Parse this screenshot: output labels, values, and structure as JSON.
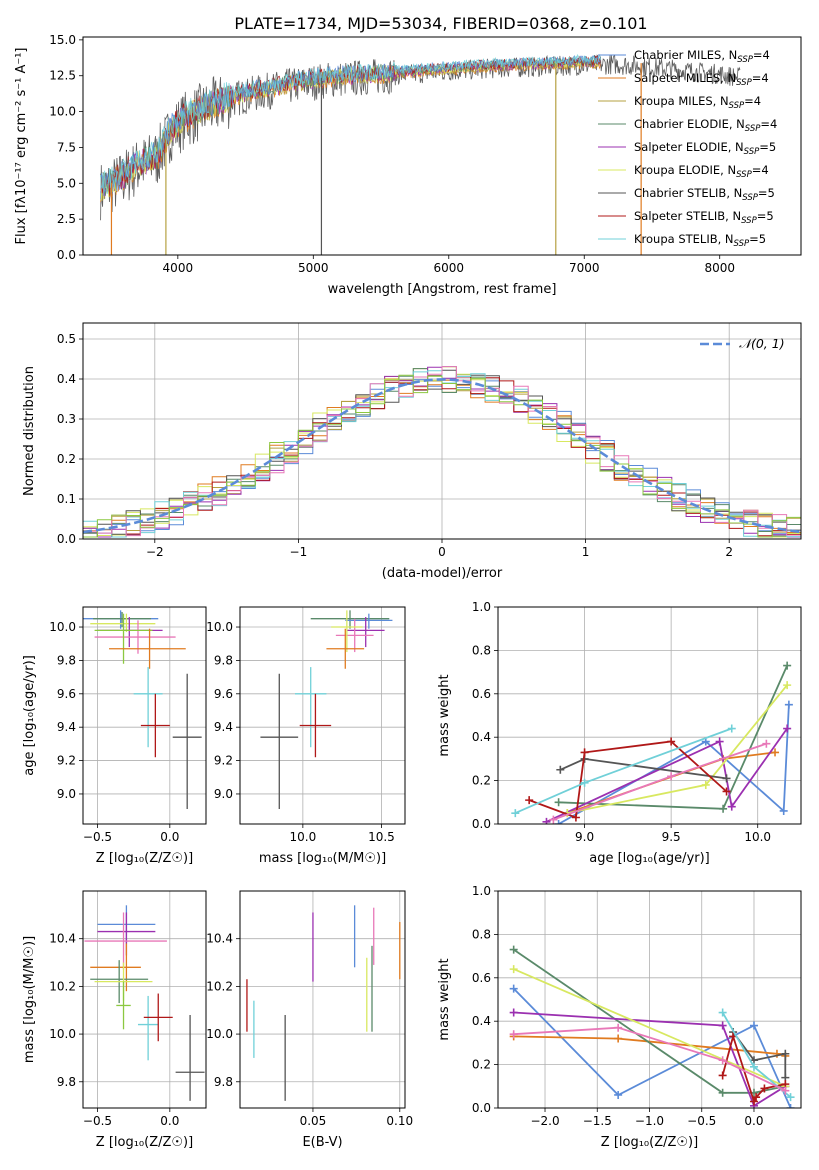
{
  "figure": {
    "title": "PLATE=1734, MJD=53034, FIBERID=0368, z=0.101"
  },
  "colors": {
    "models": [
      "#5b8bd8",
      "#e07b20",
      "#b5a040",
      "#5a8a6a",
      "#9b30b0",
      "#d8e860",
      "#555555",
      "#b01818",
      "#70d0d8"
    ],
    "extra": [
      "#e878b8",
      "#8cc840"
    ]
  },
  "chart_data": [
    {
      "id": "spectrum",
      "type": "line",
      "xlabel": "wavelength [Angstrom, rest frame]",
      "ylabel": "Flux [fλ10⁻¹⁷ erg cm⁻² s⁻¹ A⁻¹]",
      "xlim": [
        3300,
        8600
      ],
      "ylim": [
        0,
        15.2
      ],
      "xticks": [
        4000,
        5000,
        6000,
        7000,
        8000
      ],
      "yticks": [
        0.0,
        2.5,
        5.0,
        7.5,
        10.0,
        12.5,
        15.0
      ],
      "ytick_labels": [
        "0.0",
        "2.5",
        "5.0",
        "7.5",
        "10.0",
        "12.5",
        "15.0"
      ],
      "grid": false,
      "legend_position": "upper right",
      "legend": [
        "Chabrier MILES, N_SSP=4",
        "Salpeter MILES, N_SSP=4",
        "Kroupa MILES, N_SSP=4",
        "Chabrier ELODIE, N_SSP=4",
        "Salpeter ELODIE, N_SSP=5",
        "Kroupa ELODIE, N_SSP=4",
        "Chabrier STELIB, N_SSP=5",
        "Salpeter STELIB, N_SSP=5",
        "Kroupa STELIB, N_SSP=5"
      ],
      "continuum": {
        "x": [
          3430,
          3550,
          3700,
          3850,
          3950,
          4050,
          4200,
          4350,
          4500,
          4700,
          4900,
          5100,
          5400,
          5700,
          6000,
          6300,
          6600,
          6900,
          7200,
          7400,
          7600,
          7800,
          8000,
          8200
        ],
        "y": [
          4.7,
          5.2,
          6.3,
          7.0,
          8.8,
          9.6,
          10.3,
          10.9,
          11.3,
          11.7,
          12.1,
          12.4,
          12.6,
          12.8,
          13.0,
          13.2,
          13.3,
          13.4,
          13.5,
          13.4,
          13.2,
          13.0,
          12.8,
          12.5
        ]
      },
      "spikes": [
        {
          "x": 3510,
          "color_index": 1
        },
        {
          "x": 3912,
          "color_index": 2
        },
        {
          "x": 5060,
          "color_index": 6
        },
        {
          "x": 6790,
          "color_index": 2
        },
        {
          "x": 7420,
          "color_index": 1
        }
      ]
    },
    {
      "id": "residuals",
      "type": "histogram",
      "xlabel": "(data-model)/error",
      "ylabel": "Normed distribution",
      "xlim": [
        -2.5,
        2.5
      ],
      "ylim": [
        0,
        0.54
      ],
      "xticks": [
        -2,
        -1,
        0,
        1,
        2
      ],
      "xtick_labels": [
        "−2",
        "−1",
        "0",
        "1",
        "2"
      ],
      "yticks": [
        0.0,
        0.1,
        0.2,
        0.3,
        0.4,
        0.5
      ],
      "ytick_labels": [
        "0.0",
        "0.1",
        "0.2",
        "0.3",
        "0.4",
        "0.5"
      ],
      "grid": true,
      "legend_position": "upper right",
      "legend": [
        "𝒩(0, 1)"
      ],
      "bin_width": 0.1,
      "n_series": 11
    },
    {
      "id": "age_vs_Z",
      "type": "scatter",
      "xlabel": "Z [log₁₀(Z/Z☉)]",
      "ylabel": "age  [log₁₀(age/yr)]",
      "xlim": [
        -0.6,
        0.25
      ],
      "ylim": [
        8.82,
        10.12
      ],
      "xticks": [
        -0.5,
        0.0
      ],
      "xtick_labels": [
        "−0.5",
        "0.0"
      ],
      "yticks": [
        9.0,
        9.2,
        9.4,
        9.6,
        9.8,
        10.0
      ],
      "ytick_labels": [
        "9.0",
        "9.2",
        "9.4",
        "9.6",
        "9.8",
        "10.0"
      ],
      "grid": true,
      "points": [
        {
          "x": -0.34,
          "xerr": [
            0.28,
            0.26
          ],
          "y": 10.05,
          "yerr": [
            0.06,
            0.05
          ],
          "c": "#5b8bd8"
        },
        {
          "x": -0.33,
          "xerr": [
            0.2,
            0.2
          ],
          "y": 10.05,
          "yerr": [
            0.05,
            0.04
          ],
          "c": "#5a8a6a"
        },
        {
          "x": -0.3,
          "xerr": [
            0.25,
            0.2
          ],
          "y": 10.02,
          "yerr": [
            0.05,
            0.06
          ],
          "c": "#d8e860"
        },
        {
          "x": -0.28,
          "xerr": [
            0.22,
            0.23
          ],
          "y": 9.98,
          "yerr": [
            0.1,
            0.08
          ],
          "c": "#9b30b0"
        },
        {
          "x": -0.22,
          "xerr": [
            0.3,
            0.26
          ],
          "y": 9.94,
          "yerr": [
            0.1,
            0.1
          ],
          "c": "#e878b8"
        },
        {
          "x": -0.32,
          "xerr": [
            0.2,
            0.2
          ],
          "y": 9.98,
          "yerr": [
            0.2,
            0.1
          ],
          "c": "#8cc840"
        },
        {
          "x": -0.14,
          "xerr": [
            0.28,
            0.25
          ],
          "y": 9.87,
          "yerr": [
            0.12,
            0.12
          ],
          "c": "#e07b20"
        },
        {
          "x": -0.15,
          "xerr": [
            0.1,
            0.1
          ],
          "y": 9.6,
          "yerr": [
            0.32,
            0.16
          ],
          "c": "#70d0d8"
        },
        {
          "x": -0.1,
          "xerr": [
            0.1,
            0.1
          ],
          "y": 9.41,
          "yerr": [
            0.19,
            0.19
          ],
          "c": "#b01818"
        },
        {
          "x": 0.12,
          "xerr": [
            0.1,
            0.1
          ],
          "y": 9.34,
          "yerr": [
            0.43,
            0.38
          ],
          "c": "#555555"
        }
      ]
    },
    {
      "id": "age_vs_mass",
      "type": "scatter",
      "xlabel": "mass [log₁₀(M/M☉)]",
      "ylabel": "",
      "xlim": [
        9.6,
        10.65
      ],
      "ylim": [
        8.82,
        10.12
      ],
      "xticks": [
        10.0,
        10.5
      ],
      "xtick_labels": [
        "10.0",
        "10.5"
      ],
      "yticks": [
        9.0,
        9.2,
        9.4,
        9.6,
        9.8,
        10.0
      ],
      "ytick_labels": [
        "9.0",
        "9.2",
        "9.4",
        "9.6",
        "9.8",
        "10.0"
      ],
      "grid": true,
      "points": [
        {
          "x": 10.3,
          "xerr": [
            0.25,
            0.25
          ],
          "y": 10.05,
          "yerr": [
            0.06,
            0.05
          ],
          "c": "#5a8a6a"
        },
        {
          "x": 10.42,
          "xerr": [
            0.15,
            0.15
          ],
          "y": 10.04,
          "yerr": [
            0.05,
            0.04
          ],
          "c": "#5b8bd8"
        },
        {
          "x": 10.4,
          "xerr": [
            0.12,
            0.12
          ],
          "y": 9.98,
          "yerr": [
            0.1,
            0.08
          ],
          "c": "#9b30b0"
        },
        {
          "x": 10.33,
          "xerr": [
            0.12,
            0.12
          ],
          "y": 9.95,
          "yerr": [
            0.1,
            0.1
          ],
          "c": "#e878b8"
        },
        {
          "x": 10.28,
          "xerr": [
            0.1,
            0.1
          ],
          "y": 10.0,
          "yerr": [
            0.15,
            0.1
          ],
          "c": "#d8e860"
        },
        {
          "x": 10.27,
          "xerr": [
            0.12,
            0.12
          ],
          "y": 9.87,
          "yerr": [
            0.12,
            0.12
          ],
          "c": "#e07b20"
        },
        {
          "x": 10.05,
          "xerr": [
            0.1,
            0.1
          ],
          "y": 9.6,
          "yerr": [
            0.32,
            0.16
          ],
          "c": "#70d0d8"
        },
        {
          "x": 10.08,
          "xerr": [
            0.1,
            0.1
          ],
          "y": 9.41,
          "yerr": [
            0.19,
            0.19
          ],
          "c": "#b01818"
        },
        {
          "x": 9.85,
          "xerr": [
            0.12,
            0.12
          ],
          "y": 9.34,
          "yerr": [
            0.43,
            0.38
          ],
          "c": "#555555"
        }
      ]
    },
    {
      "id": "weight_vs_age",
      "type": "line",
      "xlabel": "age  [log₁₀(age/yr)]",
      "ylabel": "mass weight",
      "xlim": [
        8.5,
        10.25
      ],
      "ylim": [
        0,
        1.0
      ],
      "xticks": [
        9.0,
        9.5,
        10.0
      ],
      "xtick_labels": [
        "9.0",
        "9.5",
        "10.0"
      ],
      "yticks": [
        0.0,
        0.2,
        0.4,
        0.6,
        0.8,
        1.0
      ],
      "ytick_labels": [
        "0.0",
        "0.2",
        "0.4",
        "0.6",
        "0.8",
        "1.0"
      ],
      "grid": true,
      "series": [
        {
          "c": "#5b8bd8",
          "x": [
            8.85,
            9.7,
            10.15,
            10.18
          ],
          "y": [
            0.0,
            0.38,
            0.06,
            0.55
          ]
        },
        {
          "c": "#e07b20",
          "x": [
            8.9,
            9.8,
            10.1
          ],
          "y": [
            0.05,
            0.3,
            0.33
          ]
        },
        {
          "c": "#5a8a6a",
          "x": [
            8.85,
            9.8,
            10.17
          ],
          "y": [
            0.1,
            0.07,
            0.73
          ]
        },
        {
          "c": "#9b30b0",
          "x": [
            8.78,
            9.78,
            9.85,
            10.17
          ],
          "y": [
            0.01,
            0.38,
            0.08,
            0.44
          ]
        },
        {
          "c": "#d8e860",
          "x": [
            8.9,
            9.7,
            10.17
          ],
          "y": [
            0.05,
            0.18,
            0.64
          ]
        },
        {
          "c": "#555555",
          "x": [
            8.86,
            9.0,
            9.82
          ],
          "y": [
            0.25,
            0.3,
            0.21
          ]
        },
        {
          "c": "#b01818",
          "x": [
            8.68,
            8.95,
            9.0,
            9.5,
            9.82
          ],
          "y": [
            0.11,
            0.03,
            0.33,
            0.38,
            0.15
          ]
        },
        {
          "c": "#70d0d8",
          "x": [
            8.6,
            9.0,
            9.85
          ],
          "y": [
            0.05,
            0.19,
            0.44
          ]
        },
        {
          "c": "#e878b8",
          "x": [
            8.82,
            9.5,
            10.05
          ],
          "y": [
            0.02,
            0.22,
            0.37
          ]
        }
      ]
    },
    {
      "id": "mass_vs_Z",
      "type": "scatter",
      "xlabel": "Z [log₁₀(Z/Z☉)]",
      "ylabel": "mass [log₁₀(M/M☉)]",
      "xlim": [
        -0.6,
        0.25
      ],
      "ylim": [
        9.69,
        10.6
      ],
      "xticks": [
        -0.5,
        0.0
      ],
      "xtick_labels": [
        "−0.5",
        "0.0"
      ],
      "yticks": [
        9.8,
        10.0,
        10.2,
        10.4
      ],
      "ytick_labels": [
        "9.8",
        "10.0",
        "10.2",
        "10.4"
      ],
      "grid": true,
      "points": [
        {
          "x": -0.3,
          "xerr": [
            0.2,
            0.2
          ],
          "y": 10.46,
          "yerr": [
            0.08,
            0.08
          ],
          "c": "#5b8bd8"
        },
        {
          "x": -0.3,
          "xerr": [
            0.2,
            0.2
          ],
          "y": 10.43,
          "yerr": [
            0.1,
            0.08
          ],
          "c": "#9b30b0"
        },
        {
          "x": -0.32,
          "xerr": [
            0.27,
            0.3
          ],
          "y": 10.39,
          "yerr": [
            0.12,
            0.12
          ],
          "c": "#e878b8"
        },
        {
          "x": -0.3,
          "xerr": [
            0.25,
            0.1
          ],
          "y": 10.28,
          "yerr": [
            0.1,
            0.1
          ],
          "c": "#e07b20"
        },
        {
          "x": -0.35,
          "xerr": [
            0.2,
            0.2
          ],
          "y": 10.23,
          "yerr": [
            0.1,
            0.08
          ],
          "c": "#5a8a6a"
        },
        {
          "x": -0.32,
          "xerr": [
            0.2,
            0.2
          ],
          "y": 10.22,
          "yerr": [
            0.08,
            0.08
          ],
          "c": "#d8e860"
        },
        {
          "x": -0.32,
          "xerr": [
            0.05,
            0.05
          ],
          "y": 10.12,
          "yerr": [
            0.1,
            0.1
          ],
          "c": "#8cc840"
        },
        {
          "x": -0.15,
          "xerr": [
            0.07,
            0.07
          ],
          "y": 10.04,
          "yerr": [
            0.15,
            0.12
          ],
          "c": "#70d0d8"
        },
        {
          "x": -0.08,
          "xerr": [
            0.1,
            0.1
          ],
          "y": 10.07,
          "yerr": [
            0.1,
            0.1
          ],
          "c": "#b01818"
        },
        {
          "x": 0.14,
          "xerr": [
            0.1,
            0.1
          ],
          "y": 9.84,
          "yerr": [
            0.12,
            0.24
          ],
          "c": "#555555"
        }
      ]
    },
    {
      "id": "mass_vs_EBV",
      "type": "scatter",
      "xlabel": "E(B-V)",
      "ylabel": "",
      "xlim": [
        0.008,
        0.103
      ],
      "ylim": [
        9.69,
        10.6
      ],
      "xticks": [
        0.05,
        0.1
      ],
      "xtick_labels": [
        "0.05",
        "0.10"
      ],
      "yticks": [
        9.8,
        10.0,
        10.2,
        10.4
      ],
      "ytick_labels": [
        "9.8",
        "10.0",
        "10.2",
        "10.4"
      ],
      "grid": true,
      "points": [
        {
          "x": 0.012,
          "y": 10.12,
          "yerr": [
            0.11,
            0.11
          ],
          "c": "#b01818"
        },
        {
          "x": 0.016,
          "y": 10.02,
          "yerr": [
            0.12,
            0.12
          ],
          "c": "#70d0d8"
        },
        {
          "x": 0.034,
          "y": 9.84,
          "yerr": [
            0.12,
            0.24
          ],
          "c": "#555555"
        },
        {
          "x": 0.05,
          "y": 10.37,
          "yerr": [
            0.15,
            0.14
          ],
          "c": "#9b30b0"
        },
        {
          "x": 0.074,
          "y": 10.42,
          "yerr": [
            0.14,
            0.12
          ],
          "c": "#5b8bd8"
        },
        {
          "x": 0.081,
          "y": 10.16,
          "yerr": [
            0.15,
            0.16
          ],
          "c": "#d8e860"
        },
        {
          "x": 0.084,
          "y": 10.19,
          "yerr": [
            0.18,
            0.18
          ],
          "c": "#5a8a6a"
        },
        {
          "x": 0.085,
          "y": 10.41,
          "yerr": [
            0.12,
            0.12
          ],
          "c": "#e878b8"
        },
        {
          "x": 0.1,
          "y": 10.35,
          "yerr": [
            0.12,
            0.12
          ],
          "c": "#e07b20"
        }
      ]
    },
    {
      "id": "weight_vs_Z",
      "type": "line",
      "xlabel": "Z [log₁₀(Z/Z☉)]",
      "ylabel": "mass weight",
      "xlim": [
        -2.45,
        0.45
      ],
      "ylim": [
        0,
        1.0
      ],
      "xticks": [
        -2.0,
        -1.5,
        -1.0,
        -0.5,
        0.0
      ],
      "xtick_labels": [
        "−2.0",
        "−1.5",
        "−1.0",
        "−0.5",
        "0.0"
      ],
      "yticks": [
        0.0,
        0.2,
        0.4,
        0.6,
        0.8,
        1.0
      ],
      "ytick_labels": [
        "0.0",
        "0.2",
        "0.4",
        "0.6",
        "0.8",
        "1.0"
      ],
      "grid": true,
      "series": [
        {
          "c": "#5b8bd8",
          "x": [
            -2.3,
            -1.3,
            0.0,
            0.35
          ],
          "y": [
            0.55,
            0.06,
            0.38,
            0.0
          ]
        },
        {
          "c": "#e07b20",
          "x": [
            -2.3,
            -1.3,
            0.22,
            0.3
          ],
          "y": [
            0.33,
            0.32,
            0.25,
            0.24
          ]
        },
        {
          "c": "#5a8a6a",
          "x": [
            -2.3,
            -0.3,
            0.0,
            0.3
          ],
          "y": [
            0.73,
            0.07,
            0.07,
            0.1
          ]
        },
        {
          "c": "#9b30b0",
          "x": [
            -2.3,
            -0.3,
            0.0,
            0.3
          ],
          "y": [
            0.44,
            0.38,
            0.01,
            0.1
          ]
        },
        {
          "c": "#d8e860",
          "x": [
            -2.3,
            0.3
          ],
          "y": [
            0.64,
            0.1
          ]
        },
        {
          "c": "#555555",
          "x": [
            -0.2,
            0.0,
            0.3,
            0.3
          ],
          "y": [
            0.35,
            0.22,
            0.25,
            0.14
          ]
        },
        {
          "c": "#b01818",
          "x": [
            -0.3,
            -0.2,
            0.0,
            0.02,
            0.1,
            0.3
          ],
          "y": [
            0.15,
            0.33,
            0.03,
            0.05,
            0.09,
            0.11
          ]
        },
        {
          "c": "#70d0d8",
          "x": [
            -0.3,
            0.0,
            0.35
          ],
          "y": [
            0.44,
            0.19,
            0.05
          ]
        },
        {
          "c": "#e878b8",
          "x": [
            -2.3,
            -1.3,
            -0.3,
            0.3
          ],
          "y": [
            0.34,
            0.37,
            0.22,
            0.08
          ]
        }
      ]
    }
  ]
}
